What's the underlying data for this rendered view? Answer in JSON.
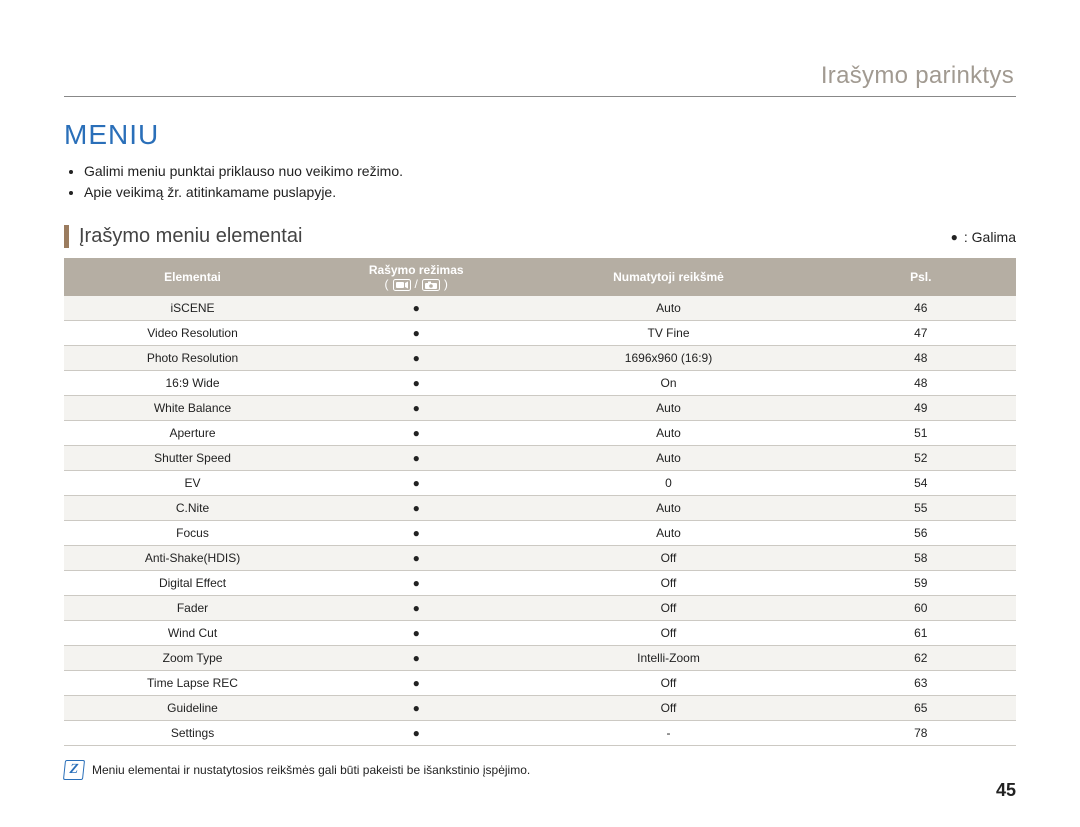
{
  "header_title": "Irašymo parinktys",
  "section_title": "MENIU",
  "bullets": [
    "Galimi meniu punktai priklauso nuo veikimo režimo.",
    "Apie veikimą žr. atitinkamame puslapyje."
  ],
  "subheading": "Įrašymo meniu elementai",
  "legend_text": ": Galima",
  "columns": {
    "elem": "Elementai",
    "mode_line1": "Rašymo režimas",
    "mode_paren_open": "(",
    "mode_slash": "/",
    "mode_paren_close": ")",
    "default": "Numatytoji reikšmė",
    "page": "Psl."
  },
  "rows": [
    {
      "elem": "iSCENE",
      "mode": "●",
      "default": "Auto",
      "page": "46"
    },
    {
      "elem": "Video Resolution",
      "mode": "●",
      "default": "TV Fine",
      "page": "47"
    },
    {
      "elem": "Photo Resolution",
      "mode": "●",
      "default": "1696x960 (16:9)",
      "page": "48"
    },
    {
      "elem": "16:9 Wide",
      "mode": "●",
      "default": "On",
      "page": "48"
    },
    {
      "elem": "White Balance",
      "mode": "●",
      "default": "Auto",
      "page": "49"
    },
    {
      "elem": "Aperture",
      "mode": "●",
      "default": "Auto",
      "page": "51"
    },
    {
      "elem": "Shutter Speed",
      "mode": "●",
      "default": "Auto",
      "page": "52"
    },
    {
      "elem": "EV",
      "mode": "●",
      "default": "0",
      "page": "54"
    },
    {
      "elem": "C.Nite",
      "mode": "●",
      "default": "Auto",
      "page": "55"
    },
    {
      "elem": "Focus",
      "mode": "●",
      "default": "Auto",
      "page": "56"
    },
    {
      "elem": "Anti-Shake(HDIS)",
      "mode": "●",
      "default": "Off",
      "page": "58"
    },
    {
      "elem": "Digital Effect",
      "mode": "●",
      "default": "Off",
      "page": "59"
    },
    {
      "elem": "Fader",
      "mode": "●",
      "default": "Off",
      "page": "60"
    },
    {
      "elem": "Wind Cut",
      "mode": "●",
      "default": "Off",
      "page": "61"
    },
    {
      "elem": "Zoom Type",
      "mode": "●",
      "default": "Intelli-Zoom",
      "page": "62"
    },
    {
      "elem": "Time Lapse REC",
      "mode": "●",
      "default": "Off",
      "page": "63"
    },
    {
      "elem": "Guideline",
      "mode": "●",
      "default": "Off",
      "page": "65"
    },
    {
      "elem": "Settings",
      "mode": "●",
      "default": "-",
      "page": "78"
    }
  ],
  "footnote": "Meniu elementai ir nustatytosios reikšmės gali būti pakeisti be išankstinio įspėjimo.",
  "page_number": "45",
  "colors": {
    "accent_blue": "#2a6fb9",
    "header_gray": "#a19a91",
    "table_header_bg": "#b5aea3",
    "row_alt_bg": "#f4f3f0",
    "row_border": "#ccc9c3",
    "rule": "#888888"
  }
}
